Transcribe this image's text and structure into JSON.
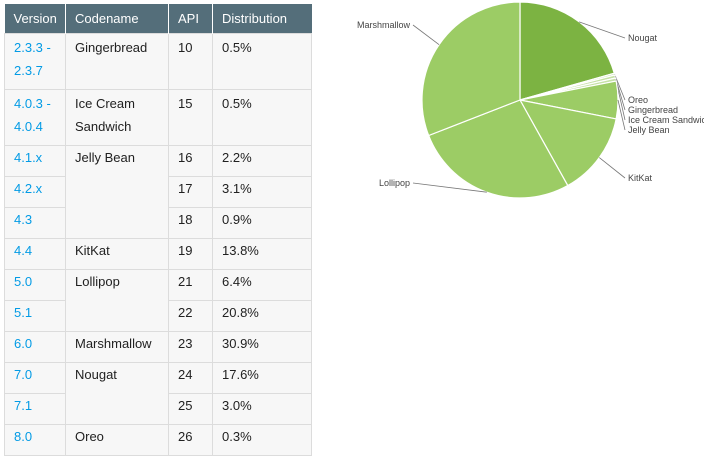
{
  "table": {
    "headers": [
      "Version",
      "Codename",
      "API",
      "Distribution"
    ],
    "rows": [
      {
        "version": "2.3.3 -\n2.3.7",
        "codename": "Gingerbread",
        "api": "10",
        "distribution": "0.5%"
      },
      {
        "version": "4.0.3 -\n4.0.4",
        "codename": "Ice Cream\nSandwich",
        "api": "15",
        "distribution": "0.5%"
      },
      {
        "version": "4.1.x",
        "codename": "Jelly Bean",
        "api": "16",
        "distribution": "2.2%"
      },
      {
        "version": "4.2.x",
        "codename": "",
        "api": "17",
        "distribution": "3.1%"
      },
      {
        "version": "4.3",
        "codename": "",
        "api": "18",
        "distribution": "0.9%"
      },
      {
        "version": "4.4",
        "codename": "KitKat",
        "api": "19",
        "distribution": "13.8%"
      },
      {
        "version": "5.0",
        "codename": "Lollipop",
        "api": "21",
        "distribution": "6.4%"
      },
      {
        "version": "5.1",
        "codename": "",
        "api": "22",
        "distribution": "20.8%"
      },
      {
        "version": "6.0",
        "codename": "Marshmallow",
        "api": "23",
        "distribution": "30.9%"
      },
      {
        "version": "7.0",
        "codename": "Nougat",
        "api": "24",
        "distribution": "17.6%"
      },
      {
        "version": "7.1",
        "codename": "",
        "api": "25",
        "distribution": "3.0%"
      },
      {
        "version": "8.0",
        "codename": "Oreo",
        "api": "26",
        "distribution": "0.3%"
      }
    ]
  },
  "colors": {
    "header_bg": "#546e7a",
    "version_link": "#039be5",
    "pie_primary": "#7cb342",
    "pie_secondary": "#9ccc65",
    "pie_tertiary": "#c5e1a5"
  },
  "chart_data": {
    "type": "pie",
    "labels": [
      "Nougat",
      "Oreo",
      "Gingerbread",
      "Ice Cream Sandwich",
      "Jelly Bean",
      "KitKat",
      "Lollipop",
      "Marshmallow"
    ],
    "values": [
      20.6,
      0.3,
      0.5,
      0.5,
      6.2,
      13.8,
      27.2,
      30.9
    ]
  }
}
